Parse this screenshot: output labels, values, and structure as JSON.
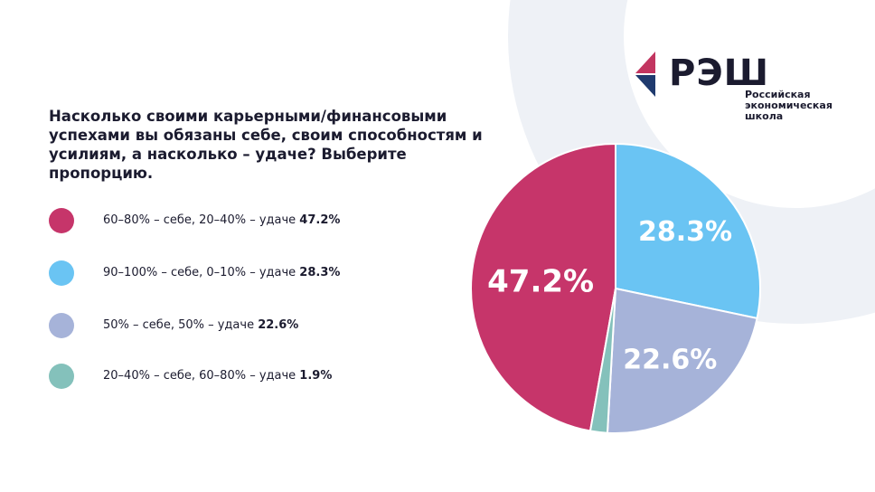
{
  "logo": {
    "mark": "nes-triangle-mark",
    "name": "РЭШ",
    "subtitle_lines": [
      "Российская",
      "экономическая",
      "школа"
    ]
  },
  "colors": {
    "bg_circle": "#eef1f6",
    "text": "#1b1b2f",
    "logo_red": "#c23560",
    "logo_blue": "#1f3a6e"
  },
  "chart_data": {
    "type": "pie",
    "title": "Насколько своими карьерными/финансовыми успехами вы обязаны себе, своим способностям и усилиям, а насколько – удаче? Выберите пропорцию.",
    "legend_position": "left",
    "slices": [
      {
        "label": "60–80% – себе, 20–40% – удаче",
        "value": 47.2,
        "value_label": "47.2%",
        "slice_label": "47.2%",
        "color": "#c6356a"
      },
      {
        "label": "90–100% – себе, 0–10% – удаче",
        "value": 28.3,
        "value_label": "28.3%",
        "slice_label": "28.3%",
        "color": "#6ac4f3"
      },
      {
        "label": "50% – себе, 50% – удаче",
        "value": 22.6,
        "value_label": "22.6%",
        "slice_label": "22.6%",
        "color": "#a6b3d9"
      },
      {
        "label": "20–40% – себе, 60–80% – удаче",
        "value": 1.9,
        "value_label": "1.9%",
        "slice_label": "",
        "color": "#84c1bb"
      }
    ]
  }
}
